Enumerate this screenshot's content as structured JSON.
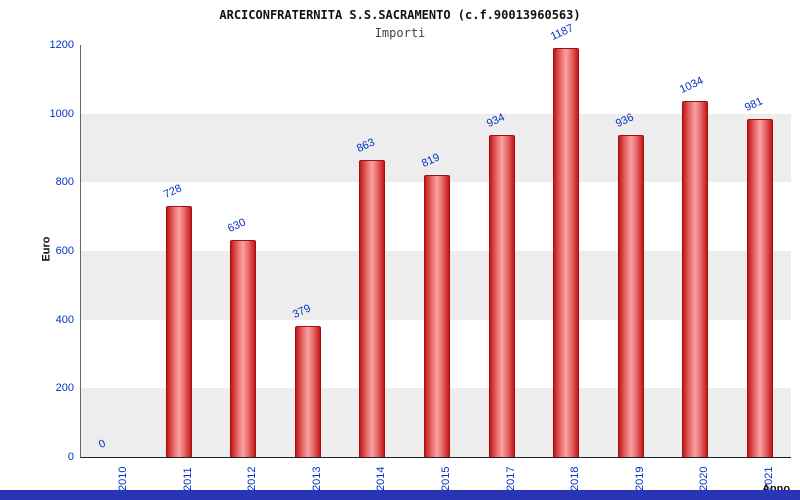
{
  "chart_data": {
    "type": "bar",
    "title": "ARCICONFRATERNITA S.S.SACRAMENTO (c.f.90013960563)",
    "subtitle": "Importi",
    "xlabel": "Anno",
    "ylabel": "Euro",
    "categories": [
      "2010",
      "2011",
      "2012",
      "2013",
      "2014",
      "2015",
      "2017",
      "2018",
      "2019",
      "2020",
      "2021"
    ],
    "values": [
      0,
      728,
      630,
      379,
      863,
      819,
      934,
      1187,
      936,
      1034,
      981
    ],
    "ylim": [
      0,
      1200
    ],
    "ytick_step": 200,
    "grid": "horizontal-white-on-alt-bands",
    "legend": "none",
    "colors": {
      "bar_main": "#c41818",
      "bar_highlight": "#f7a3a3",
      "bar_border": "#a01010",
      "tick_text": "#0433c4",
      "band_gray": "#ededed",
      "band_white": "#ffffff",
      "bottom_strip": "#2a35b5"
    }
  }
}
